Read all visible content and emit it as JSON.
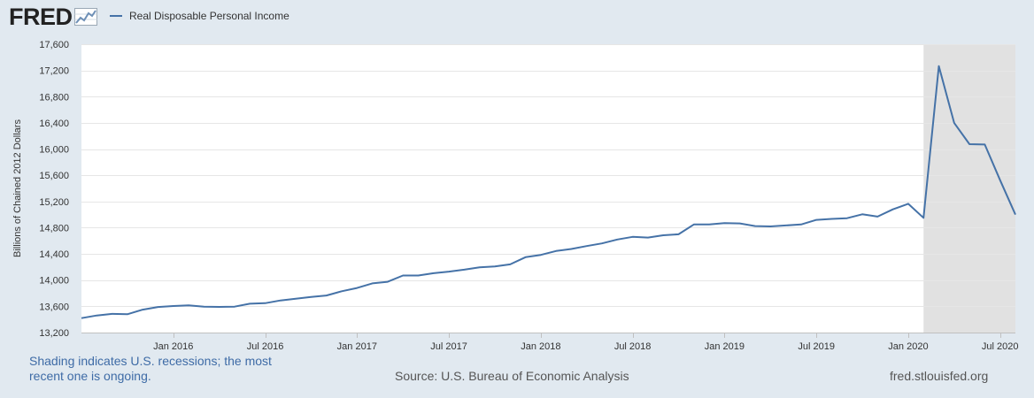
{
  "header": {
    "logo_text": "FRED",
    "logo_icon": "fred-chart-icon"
  },
  "chart_data": {
    "type": "line",
    "title": "",
    "ylabel": "Billions of Chained 2012 Dollars",
    "xlabel": "",
    "ylim": [
      13200,
      17600
    ],
    "yticks": [
      13200,
      13600,
      14000,
      14400,
      14800,
      15200,
      15600,
      16000,
      16400,
      16800,
      17200,
      17600
    ],
    "ytick_labels": [
      "13,200",
      "13,600",
      "14,000",
      "14,400",
      "14,800",
      "15,200",
      "15,600",
      "16,000",
      "16,400",
      "16,800",
      "17,200",
      "17,600"
    ],
    "xrange": [
      "2015-07-01",
      "2020-08-01"
    ],
    "xticks": [
      "2016-01-01",
      "2016-07-01",
      "2017-01-01",
      "2017-07-01",
      "2018-01-01",
      "2018-07-01",
      "2019-01-01",
      "2019-07-01",
      "2020-01-01",
      "2020-07-01"
    ],
    "xtick_labels": [
      "Jan 2016",
      "Jul 2016",
      "Jan 2017",
      "Jul 2017",
      "Jan 2018",
      "Jul 2018",
      "Jan 2019",
      "Jul 2019",
      "Jan 2020",
      "Jul 2020"
    ],
    "recession": {
      "start": "2020-02-01",
      "end": "2020-08-01"
    },
    "grid": true,
    "legend_position": "top-left",
    "series": [
      {
        "name": "Real Disposable Personal Income",
        "color": "#4572a7",
        "x": [
          "2015-07-01",
          "2015-08-01",
          "2015-09-01",
          "2015-10-01",
          "2015-11-01",
          "2015-12-01",
          "2016-01-01",
          "2016-02-01",
          "2016-03-01",
          "2016-04-01",
          "2016-05-01",
          "2016-06-01",
          "2016-07-01",
          "2016-08-01",
          "2016-09-01",
          "2016-10-01",
          "2016-11-01",
          "2016-12-01",
          "2017-01-01",
          "2017-02-01",
          "2017-03-01",
          "2017-04-01",
          "2017-05-01",
          "2017-06-01",
          "2017-07-01",
          "2017-08-01",
          "2017-09-01",
          "2017-10-01",
          "2017-11-01",
          "2017-12-01",
          "2018-01-01",
          "2018-02-01",
          "2018-03-01",
          "2018-04-01",
          "2018-05-01",
          "2018-06-01",
          "2018-07-01",
          "2018-08-01",
          "2018-09-01",
          "2018-10-01",
          "2018-11-01",
          "2018-12-01",
          "2019-01-01",
          "2019-02-01",
          "2019-03-01",
          "2019-04-01",
          "2019-05-01",
          "2019-06-01",
          "2019-07-01",
          "2019-08-01",
          "2019-09-01",
          "2019-10-01",
          "2019-11-01",
          "2019-12-01",
          "2020-01-01",
          "2020-02-01",
          "2020-03-01",
          "2020-04-01",
          "2020-05-01",
          "2020-06-01",
          "2020-07-01",
          "2020-08-01"
        ],
        "values": [
          13420,
          13460,
          13485,
          13480,
          13550,
          13590,
          13605,
          13615,
          13595,
          13592,
          13595,
          13640,
          13648,
          13690,
          13715,
          13742,
          13765,
          13830,
          13880,
          13950,
          13975,
          14070,
          14070,
          14105,
          14130,
          14160,
          14195,
          14210,
          14240,
          14350,
          14385,
          14445,
          14475,
          14520,
          14560,
          14620,
          14660,
          14650,
          14685,
          14700,
          14850,
          14850,
          14870,
          14865,
          14825,
          14820,
          14835,
          14850,
          14920,
          14935,
          14945,
          15005,
          14970,
          15080,
          15165,
          14950,
          17265,
          16400,
          16075,
          16070,
          15525,
          15000
        ]
      }
    ]
  },
  "footer": {
    "note": "Shading indicates U.S. recessions; the most recent one is ongoing.",
    "source": "Source: U.S. Bureau of Economic Analysis",
    "url": "fred.stlouisfed.org"
  }
}
